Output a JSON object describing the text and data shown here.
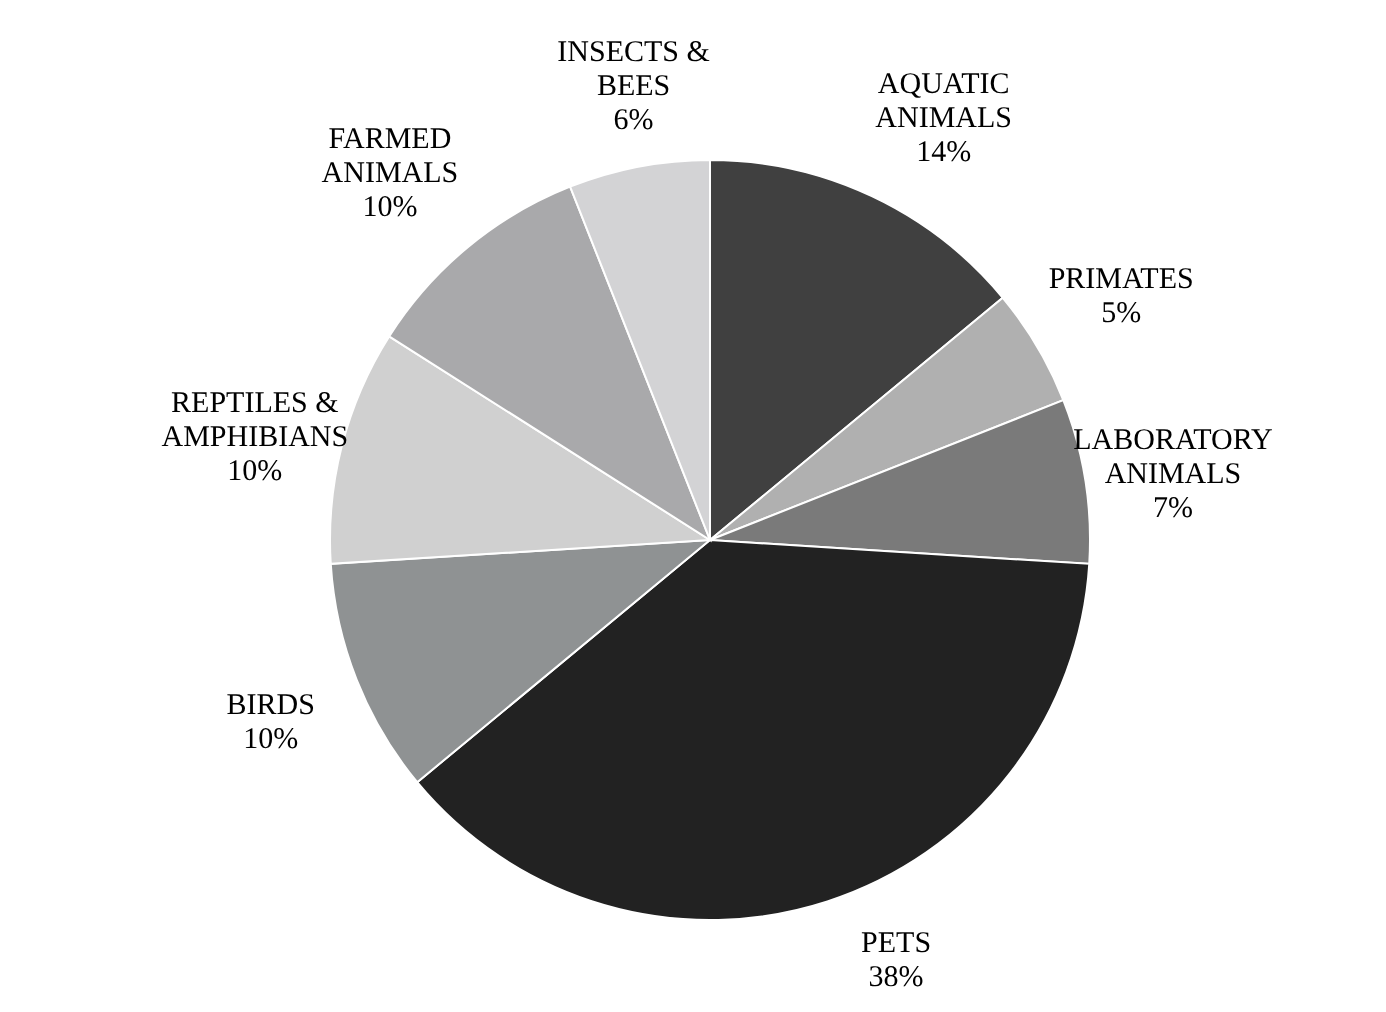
{
  "chart_data": {
    "type": "pie",
    "categories": [
      "AQUATIC ANIMALS",
      "PRIMATES",
      "LABORATORY ANIMALS",
      "PETS",
      "BIRDS",
      "REPTILES & AMPHIBIANS",
      "FARMED ANIMALS",
      "INSECTS & BEES"
    ],
    "values": [
      14,
      5,
      7,
      38,
      10,
      10,
      10,
      6
    ],
    "value_labels": [
      "14%",
      "5%",
      "7%",
      "38%",
      "10%",
      "10%",
      "10%",
      "6%"
    ],
    "colors": [
      "#404040",
      "#b0b0b0",
      "#7a7a7a",
      "#222222",
      "#8f9293",
      "#d0d0d0",
      "#a9a9ab",
      "#d3d3d5"
    ]
  }
}
